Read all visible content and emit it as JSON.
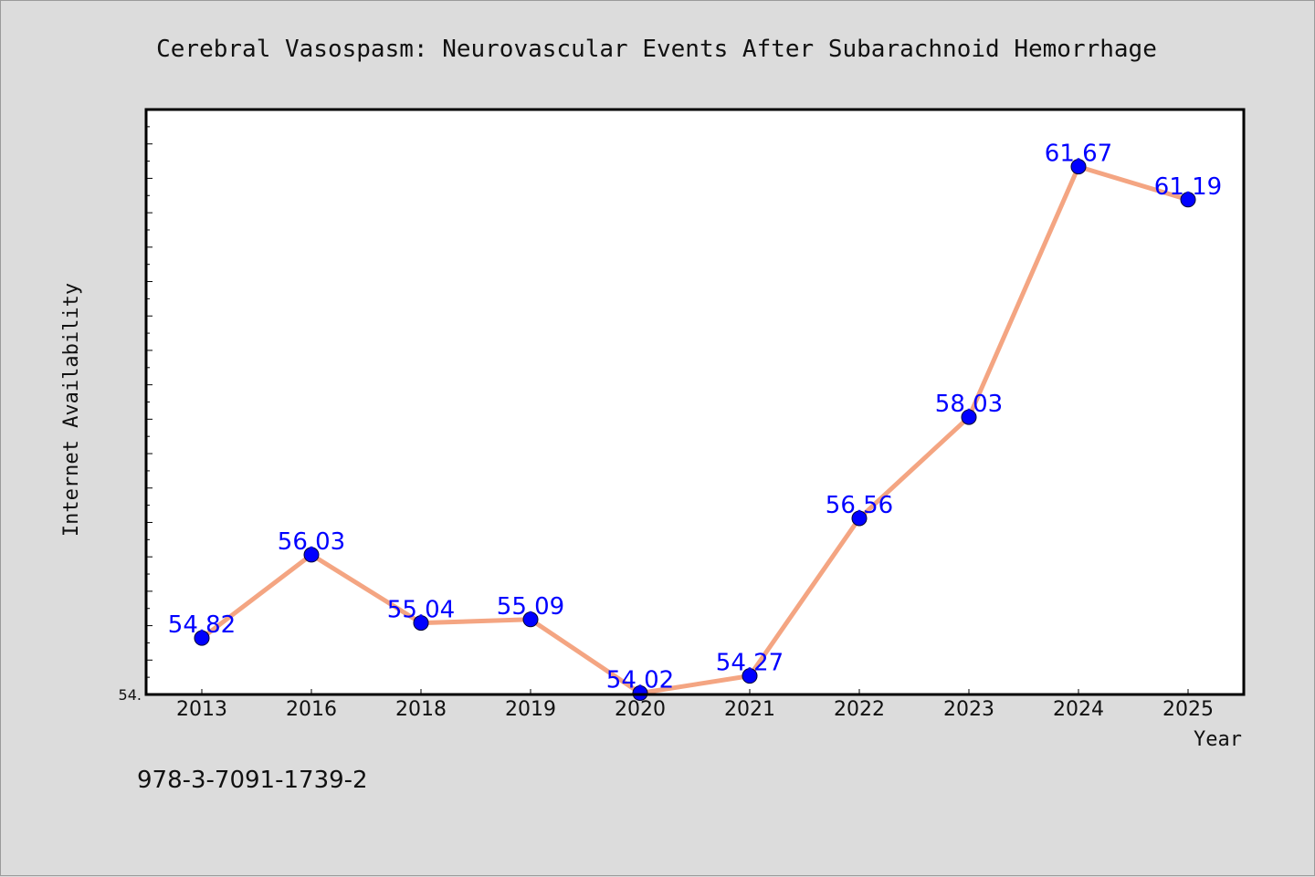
{
  "chart_data": {
    "type": "line",
    "title": "Cerebral Vasospasm: Neurovascular Events After Subarachnoid Hemorrhage",
    "xlabel": "Year",
    "ylabel": "Internet Availability",
    "categories": [
      "2013",
      "2016",
      "2018",
      "2019",
      "2020",
      "2021",
      "2022",
      "2023",
      "2024",
      "2025"
    ],
    "series": [
      {
        "values": [
          54.82,
          56.03,
          55.04,
          55.09,
          54.02,
          54.27,
          56.56,
          58.03,
          61.67,
          61.19
        ],
        "labels": [
          "54.82",
          "56.03",
          "55.04",
          "55.09",
          "54.02",
          "54.27",
          "56.56",
          "58.03",
          "61.67",
          "61.19"
        ]
      }
    ],
    "ylim": [
      54.0,
      62.5
    ],
    "y_tick_label": "54.",
    "grid": false,
    "legend": "none",
    "line_color": "#f4a582",
    "marker_color": "#0000ff",
    "label_color": "#0000ff"
  },
  "caption": "978-3-7091-1739-2"
}
